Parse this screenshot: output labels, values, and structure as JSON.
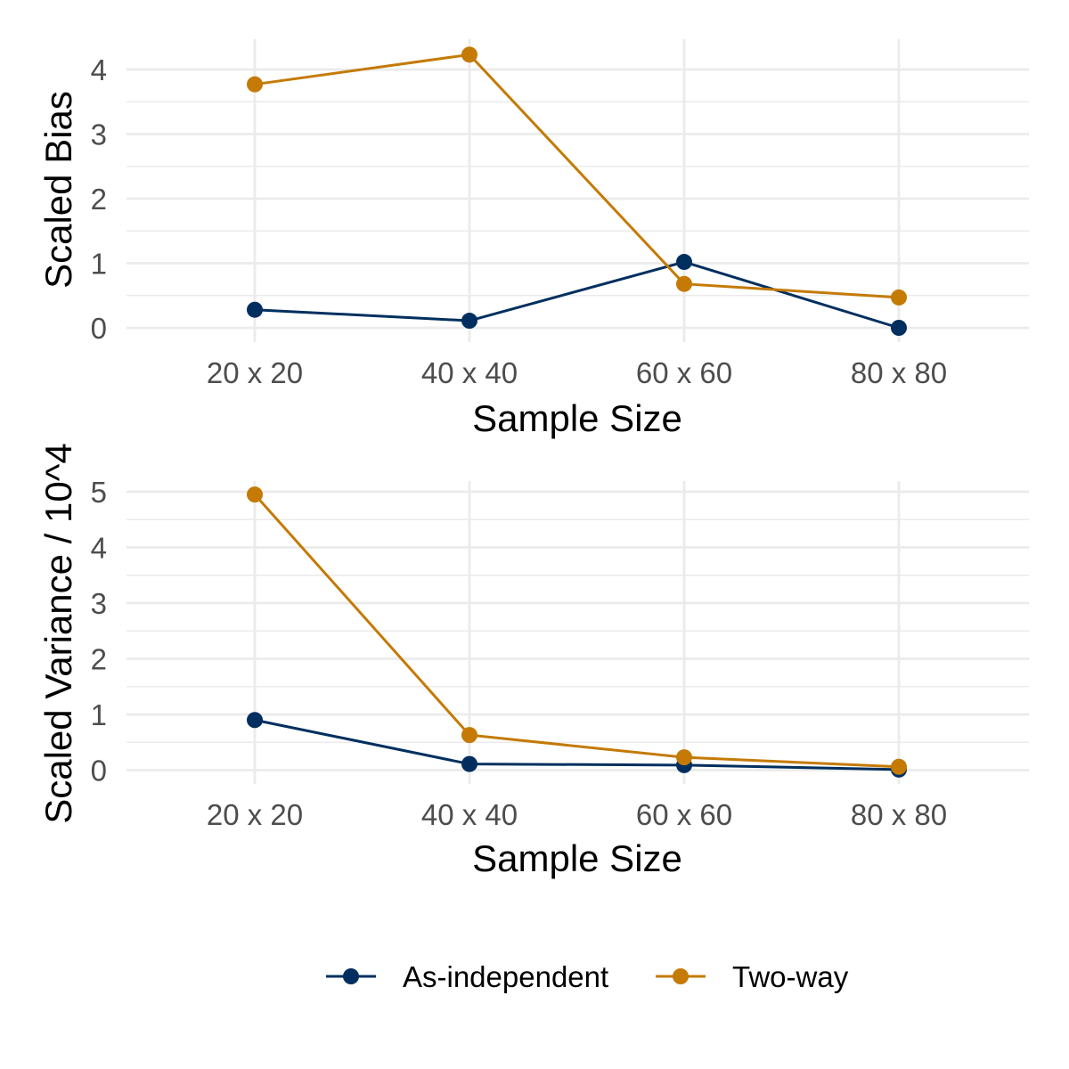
{
  "colors": {
    "as_independent": "#002F5F",
    "two_way": "#C47A05"
  },
  "legend": [
    {
      "label": "As-independent",
      "color": "#002F5F"
    },
    {
      "label": "Two-way",
      "color": "#C47A05"
    }
  ],
  "chart_data": [
    {
      "type": "line",
      "categories": [
        "20 x 20",
        "40 x 40",
        "60 x 60",
        "80 x 80"
      ],
      "xlabel": "Sample Size",
      "ylabel": "Scaled Bias",
      "ylim": [
        0,
        4.3
      ],
      "yticks": [
        "0",
        "1",
        "2",
        "3",
        "4"
      ],
      "grid": true,
      "series": [
        {
          "name": "As-independent",
          "color": "#002F5F",
          "values": [
            0.28,
            0.11,
            1.02,
            0.0
          ]
        },
        {
          "name": "Two-way",
          "color": "#C47A05",
          "values": [
            3.77,
            4.23,
            0.68,
            0.47
          ]
        }
      ]
    },
    {
      "type": "line",
      "categories": [
        "20 x 20",
        "40 x 40",
        "60 x 60",
        "80 x 80"
      ],
      "xlabel": "Sample Size",
      "ylabel": "Scaled Variance / 10^4",
      "ylim": [
        0,
        5.2
      ],
      "yticks": [
        "0",
        "1",
        "2",
        "3",
        "4",
        "5"
      ],
      "grid": true,
      "series": [
        {
          "name": "As-independent",
          "color": "#002F5F",
          "values": [
            0.9,
            0.11,
            0.09,
            0.01
          ]
        },
        {
          "name": "Two-way",
          "color": "#C47A05",
          "values": [
            4.95,
            0.63,
            0.23,
            0.06
          ]
        }
      ]
    }
  ]
}
